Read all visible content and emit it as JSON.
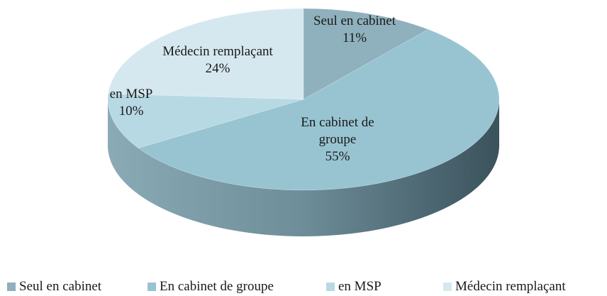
{
  "chart_data": {
    "type": "pie",
    "categories": [
      "Seul en cabinet",
      "En cabinet de groupe",
      "en MSP",
      "Médecin remplaçant"
    ],
    "values": [
      11,
      55,
      10,
      24
    ],
    "value_labels": [
      "11%",
      "55%",
      "10%",
      "24%"
    ],
    "colors": [
      "#8fb0bd",
      "#98c4d2",
      "#b7d9e4",
      "#d6e8ef"
    ],
    "legend": "bottom"
  }
}
